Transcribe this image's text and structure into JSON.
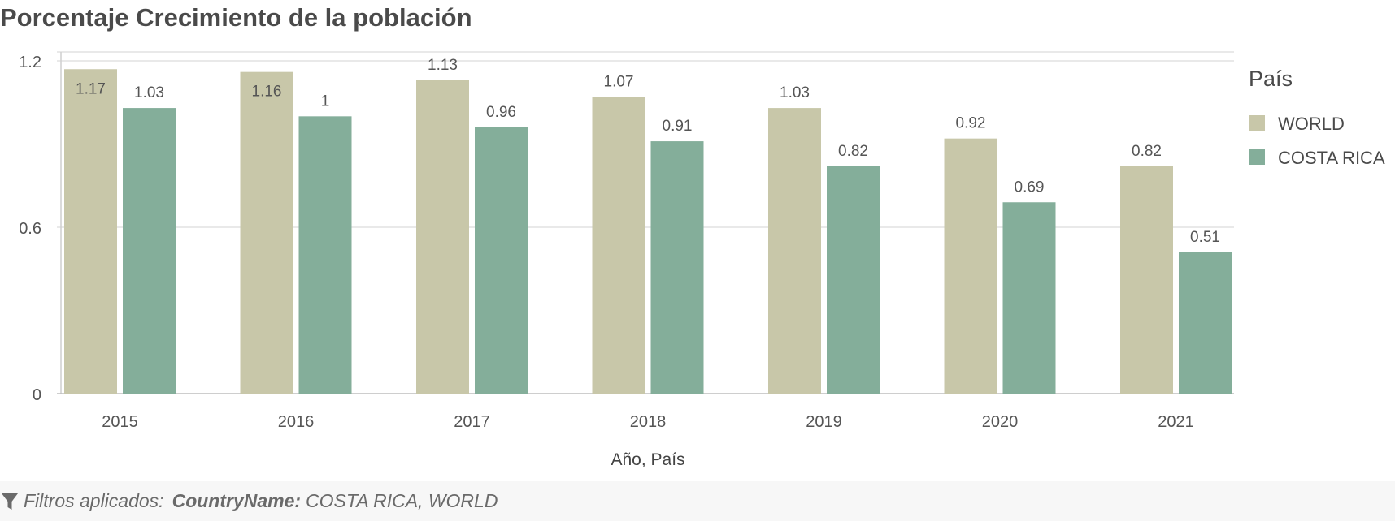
{
  "chart_data": {
    "type": "bar",
    "title": "Porcentaje Crecimiento de la población",
    "xlabel": "Año, País",
    "ylabel": "",
    "ylim": [
      0,
      1.2
    ],
    "yticks": [
      "0",
      "0.6",
      "1.2"
    ],
    "categories": [
      "2015",
      "2016",
      "2017",
      "2018",
      "2019",
      "2020",
      "2021"
    ],
    "legend_title": "País",
    "legend_position": "right",
    "grid": true,
    "series": [
      {
        "name": "WORLD",
        "color": "#c8c7a9",
        "values": [
          1.17,
          1.16,
          1.13,
          1.07,
          1.03,
          0.92,
          0.82
        ],
        "labels": [
          "1.17",
          "1.16",
          "1.13",
          "1.07",
          "1.03",
          "0.92",
          "0.82"
        ]
      },
      {
        "name": "COSTA RICA",
        "color": "#84ae9a",
        "values": [
          1.03,
          1.0,
          0.96,
          0.91,
          0.82,
          0.69,
          0.51
        ],
        "labels": [
          "1.03",
          "1",
          "0.96",
          "0.91",
          "0.82",
          "0.69",
          "0.51"
        ]
      }
    ]
  },
  "footer": {
    "prefix": "Filtros aplicados:",
    "key": "CountryName:",
    "value": "COSTA RICA, WORLD"
  }
}
